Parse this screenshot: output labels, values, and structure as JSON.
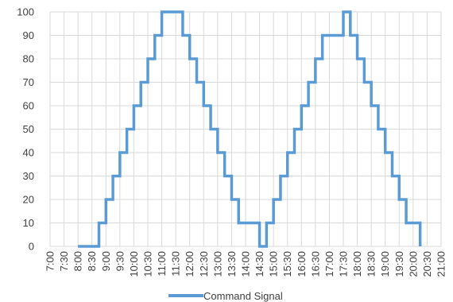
{
  "chart_data": {
    "type": "line",
    "title": "",
    "xlabel": "",
    "ylabel": "",
    "ylim": [
      0,
      100
    ],
    "yticks": [
      0,
      10,
      20,
      30,
      40,
      50,
      60,
      70,
      80,
      90,
      100
    ],
    "x_tick_labels": [
      "7:00",
      "7:30",
      "8:00",
      "8:30",
      "9:00",
      "9:30",
      "10:00",
      "10:30",
      "11:00",
      "11:30",
      "12:00",
      "12:30",
      "13:00",
      "13:30",
      "14:00",
      "14:30",
      "15:00",
      "15:30",
      "16:00",
      "16:30",
      "17:00",
      "17:30",
      "18:00",
      "18:30",
      "19:00",
      "19:30",
      "20:00",
      "20:30",
      "21:00"
    ],
    "grid": true,
    "legend_position": "bottom",
    "series": [
      {
        "name": "Command Signal",
        "color": "#5B9BD5",
        "step": true,
        "x": [
          "8:00",
          "8:45",
          "9:00",
          "9:15",
          "9:30",
          "9:45",
          "10:00",
          "10:15",
          "10:30",
          "10:45",
          "11:00",
          "11:45",
          "12:00",
          "12:15",
          "12:30",
          "12:45",
          "13:00",
          "13:15",
          "13:30",
          "13:45",
          "14:30",
          "14:45",
          "15:00",
          "15:15",
          "15:30",
          "15:45",
          "16:00",
          "16:15",
          "16:30",
          "16:45",
          "17:30",
          "17:45",
          "18:00",
          "18:15",
          "18:30",
          "18:45",
          "19:00",
          "19:15",
          "19:30",
          "19:45",
          "20:15"
        ],
        "values": [
          0,
          10,
          20,
          30,
          40,
          50,
          60,
          70,
          80,
          90,
          100,
          90,
          80,
          70,
          60,
          50,
          40,
          30,
          20,
          10,
          0,
          10,
          20,
          30,
          40,
          50,
          60,
          70,
          80,
          90,
          100,
          90,
          80,
          70,
          60,
          50,
          40,
          30,
          20,
          10,
          0
        ]
      }
    ]
  },
  "legend": {
    "color": "#5B9BD5"
  }
}
